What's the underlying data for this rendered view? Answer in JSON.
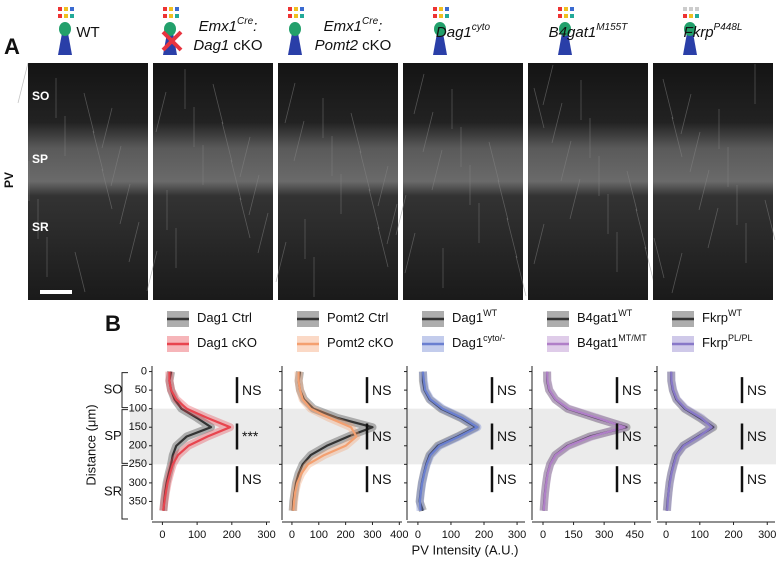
{
  "panel_a": {
    "label": "A",
    "stain": "PV",
    "layers": [
      "SO",
      "SP",
      "SR"
    ],
    "columns": [
      {
        "lines": [
          [
            {
              "text": "WT"
            }
          ]
        ]
      },
      {
        "lines": [
          [
            {
              "text": "Emx1",
              "italic": true
            },
            {
              "text": "Cre",
              "sup": true
            },
            {
              "text": ":",
              "italic": true
            }
          ],
          [
            {
              "text": "Dag1",
              "italic": true
            },
            {
              "text": " cKO"
            }
          ]
        ],
        "cross": true
      },
      {
        "lines": [
          [
            {
              "text": "Emx1",
              "italic": true
            },
            {
              "text": "Cre",
              "sup": true
            },
            {
              "text": ":",
              "italic": true
            }
          ],
          [
            {
              "text": "Pomt2",
              "italic": true
            },
            {
              "text": " cKO"
            }
          ]
        ]
      },
      {
        "lines": [
          [
            {
              "text": "Dag1",
              "italic": true
            },
            {
              "text": "cyto",
              "sup": true
            }
          ]
        ]
      },
      {
        "lines": [
          [
            {
              "text": "B4gat1",
              "italic": true
            },
            {
              "text": "M155T",
              "sup": true
            }
          ]
        ]
      },
      {
        "lines": [
          [
            {
              "text": "Fkrp",
              "italic": true
            },
            {
              "text": "P448L",
              "sup": true
            }
          ]
        ]
      }
    ]
  },
  "panel_b": {
    "label": "B",
    "xlabel": "PV Intensity (A.U.)",
    "ylabel": "Distance (μm)",
    "band": [
      100,
      250
    ],
    "regions": [
      {
        "label": "SO",
        "range": [
          0,
          100
        ]
      },
      {
        "label": "SP",
        "range": [
          100,
          250
        ]
      },
      {
        "label": "SR",
        "range": [
          250,
          400
        ]
      }
    ]
  },
  "chart_data": [
    {
      "type": "line",
      "y": [
        0,
        25,
        50,
        75,
        100,
        125,
        150,
        175,
        200,
        225,
        250,
        275,
        300,
        325,
        350,
        375
      ],
      "ylim": [
        -15,
        400
      ],
      "yticks": [
        0,
        50,
        100,
        150,
        200,
        250,
        300,
        350
      ],
      "xlim": [
        -30,
        310
      ],
      "xticks": [
        0,
        100,
        200,
        300
      ],
      "annotations": [
        "NS",
        "***",
        "NS"
      ],
      "series": [
        {
          "name": "Dag1 Ctrl",
          "color": "#333333",
          "values": [
            25,
            20,
            25,
            35,
            55,
            100,
            140,
            70,
            40,
            30,
            25,
            18,
            12,
            8,
            5,
            3
          ]
        },
        {
          "name": "Dag1 cKO",
          "color": "#e8454f",
          "values": [
            20,
            20,
            25,
            40,
            70,
            130,
            195,
            130,
            75,
            45,
            30,
            22,
            15,
            10,
            6,
            2
          ]
        }
      ]
    },
    {
      "type": "line",
      "y": [
        0,
        25,
        50,
        75,
        100,
        125,
        150,
        175,
        200,
        225,
        250,
        275,
        300,
        325,
        350,
        375
      ],
      "ylim": [
        -15,
        400
      ],
      "xlim": [
        -37,
        410
      ],
      "xticks": [
        0,
        100,
        200,
        300,
        400
      ],
      "annotations": [
        "NS",
        "NS",
        "NS"
      ],
      "series": [
        {
          "name": "Pomt2 Ctrl",
          "color": "#333333",
          "values": [
            30,
            25,
            30,
            45,
            80,
            170,
            300,
            210,
            130,
            70,
            40,
            25,
            15,
            10,
            5,
            3
          ]
        },
        {
          "name": "Pomt2 cKO",
          "color": "#f4a070",
          "values": [
            25,
            25,
            30,
            40,
            70,
            140,
            220,
            240,
            200,
            120,
            60,
            35,
            20,
            12,
            8,
            5
          ]
        }
      ]
    },
    {
      "type": "line",
      "y": [
        0,
        25,
        50,
        75,
        100,
        125,
        150,
        175,
        200,
        225,
        250,
        275,
        300,
        325,
        350,
        375
      ],
      "ylim": [
        -15,
        400
      ],
      "xlim": [
        -33,
        324
      ],
      "xticks": [
        0,
        100,
        200,
        300
      ],
      "annotations": [
        "NS",
        "NS",
        "NS"
      ],
      "series": [
        {
          "name": "Dag1",
          "name_sup": "WT",
          "color": "#333333",
          "values": [
            15,
            15,
            20,
            35,
            70,
            130,
            175,
            120,
            60,
            35,
            25,
            18,
            12,
            8,
            5,
            15
          ]
        },
        {
          "name": "Dag1",
          "name_sup": "cyto/-",
          "color": "#6a7fd0",
          "values": [
            15,
            18,
            22,
            38,
            75,
            135,
            180,
            125,
            65,
            38,
            27,
            19,
            13,
            9,
            6,
            8
          ]
        }
      ]
    },
    {
      "type": "line",
      "y": [
        0,
        25,
        50,
        75,
        100,
        125,
        150,
        175,
        200,
        225,
        250,
        275,
        300,
        325,
        350,
        375
      ],
      "ylim": [
        -15,
        400
      ],
      "xlim": [
        -54,
        530
      ],
      "xticks": [
        0,
        150,
        300,
        450
      ],
      "annotations": [
        "NS",
        "NS",
        "NS"
      ],
      "series": [
        {
          "name": "B4gat1",
          "name_sup": "WT",
          "color": "#333333",
          "values": [
            20,
            20,
            30,
            60,
            120,
            260,
            410,
            230,
            120,
            60,
            35,
            22,
            15,
            10,
            6,
            3
          ]
        },
        {
          "name": "B4gat1",
          "name_sup": "MT/MT",
          "color": "#b07fc8",
          "values": [
            20,
            22,
            32,
            62,
            125,
            270,
            400,
            240,
            125,
            62,
            36,
            23,
            16,
            11,
            7,
            4
          ]
        }
      ]
    },
    {
      "type": "line",
      "y": [
        0,
        25,
        50,
        75,
        100,
        125,
        150,
        175,
        200,
        225,
        250,
        275,
        300,
        325,
        350,
        375
      ],
      "ylim": [
        -15,
        400
      ],
      "xlim": [
        -27,
        323
      ],
      "xticks": [
        0,
        100,
        200,
        300
      ],
      "annotations": [
        "NS",
        "NS",
        "NS"
      ],
      "series": [
        {
          "name": "Fkrp",
          "name_sup": "WT",
          "color": "#333333",
          "values": [
            15,
            15,
            20,
            30,
            55,
            100,
            140,
            95,
            50,
            30,
            22,
            15,
            10,
            7,
            4,
            2
          ]
        },
        {
          "name": "Fkrp",
          "name_sup": "PL/PL",
          "color": "#8878c8",
          "values": [
            15,
            16,
            21,
            32,
            58,
            105,
            135,
            98,
            52,
            31,
            23,
            16,
            11,
            7,
            5,
            3
          ]
        }
      ]
    }
  ]
}
